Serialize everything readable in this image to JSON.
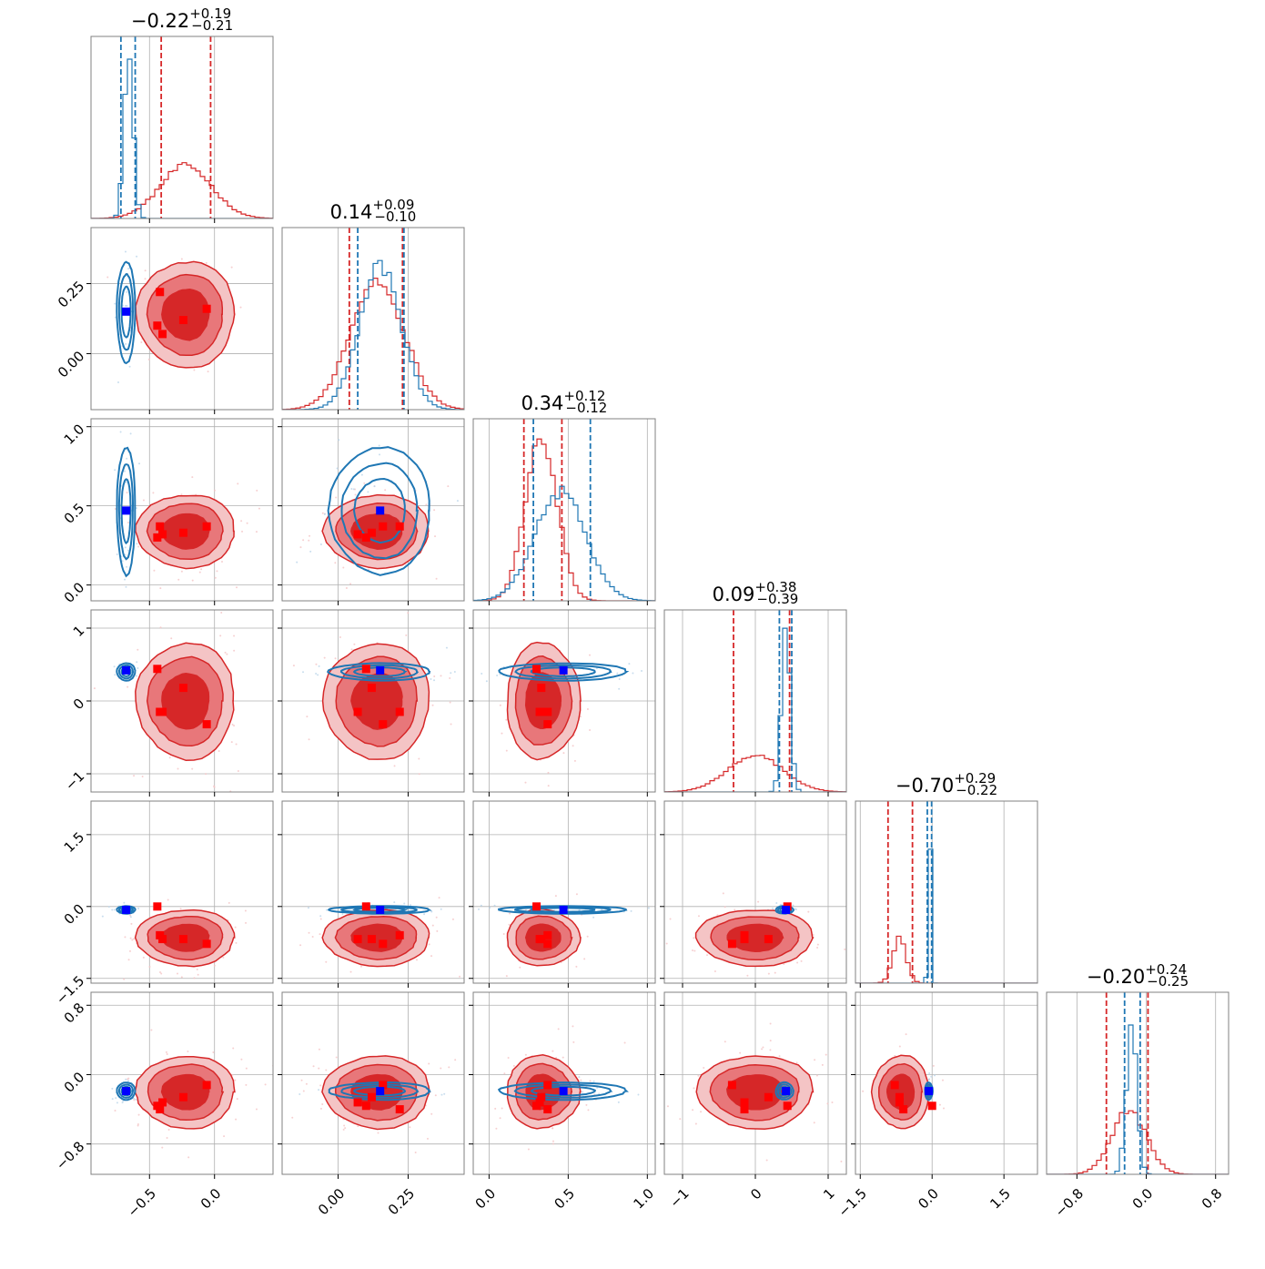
{
  "chart_data": {
    "type": "corner",
    "grid": true,
    "colors": {
      "red": "#d62728",
      "red_mid": "#e8777a",
      "red_light": "#f4c4c5",
      "blue": "#1f77b4",
      "blue_marker": "#0000ff",
      "red_marker": "#ff0000",
      "frame": "#808080",
      "grid": "#b0b0b0"
    },
    "diagonal": [
      {
        "title_main": "−0.22",
        "title_sup": "+0.19",
        "title_sub": "−0.21",
        "range": [
          -0.95,
          0.45
        ],
        "red_hist": {
          "center": -0.22,
          "sigma": 0.2,
          "peak": 0.29
        },
        "blue_hist": {
          "center": -0.66,
          "sigma": 0.035,
          "peak": 0.9
        },
        "red_quantiles": [
          -0.41,
          -0.03
        ],
        "blue_quantiles": [
          -0.72,
          -0.61
        ]
      },
      {
        "title_main": "0.14",
        "title_sup": "+0.09",
        "title_sub": "−0.10",
        "range": [
          -0.2,
          0.45
        ],
        "red_hist": {
          "center": 0.14,
          "sigma": 0.095,
          "peak": 0.72
        },
        "blue_hist": {
          "center": 0.15,
          "sigma": 0.075,
          "peak": 0.78
        },
        "red_quantiles": [
          0.04,
          0.23
        ],
        "blue_quantiles": [
          0.07,
          0.235
        ]
      },
      {
        "title_main": "0.34",
        "title_sup": "+0.12",
        "title_sub": "−0.12",
        "range": [
          -0.1,
          1.05
        ],
        "red_hist": {
          "center": 0.33,
          "sigma": 0.1,
          "peak": 0.9
        },
        "blue_hist": {
          "center": 0.45,
          "sigma": 0.16,
          "peak": 0.6
        },
        "red_quantiles": [
          0.22,
          0.46
        ],
        "blue_quantiles": [
          0.28,
          0.64
        ]
      },
      {
        "title_main": "0.09",
        "title_sup": "+0.38",
        "title_sub": "−0.39",
        "range": [
          -1.25,
          1.25
        ],
        "red_hist": {
          "center": 0.0,
          "sigma": 0.38,
          "peak": 0.2
        },
        "blue_hist": {
          "center": 0.42,
          "sigma": 0.06,
          "peak": 0.9
        },
        "red_quantiles": [
          -0.3,
          0.47
        ],
        "blue_quantiles": [
          0.33,
          0.5
        ]
      },
      {
        "title_main": "−0.70",
        "title_sup": "+0.29",
        "title_sub": "−0.22",
        "range": [
          -1.6,
          2.2
        ],
        "red_hist": {
          "center": -0.68,
          "sigma": 0.14,
          "peak": 0.25
        },
        "blue_hist": {
          "center": -0.05,
          "sigma": 0.03,
          "peak": 0.92
        },
        "red_quantiles": [
          -0.92,
          -0.41
        ],
        "blue_quantiles": [
          -0.1,
          -0.01
        ]
      },
      {
        "title_main": "−0.20",
        "title_sup": "+0.24",
        "title_sub": "−0.25",
        "range": [
          -1.15,
          0.95
        ],
        "red_hist": {
          "center": -0.2,
          "sigma": 0.2,
          "peak": 0.35
        },
        "blue_hist": {
          "center": -0.17,
          "sigma": 0.06,
          "peak": 0.82
        },
        "red_quantiles": [
          -0.46,
          0.02
        ],
        "blue_quantiles": [
          -0.25,
          -0.07
        ]
      }
    ],
    "x_ticks": [
      [
        {
          "v": -0.5,
          "label": "−0.5"
        },
        {
          "v": 0.0,
          "label": "0.0"
        }
      ],
      [
        {
          "v": 0.0,
          "label": "0.00"
        },
        {
          "v": 0.25,
          "label": "0.25"
        }
      ],
      [
        {
          "v": 0.0,
          "label": "0.0"
        },
        {
          "v": 0.5,
          "label": "0.5"
        },
        {
          "v": 1.0,
          "label": "1.0"
        }
      ],
      [
        {
          "v": -1,
          "label": "−1"
        },
        {
          "v": 0,
          "label": "0"
        },
        {
          "v": 1,
          "label": "1"
        }
      ],
      [
        {
          "v": -1.5,
          "label": "−1.5"
        },
        {
          "v": 0.0,
          "label": "0.0"
        },
        {
          "v": 1.5,
          "label": "1.5"
        }
      ],
      [
        {
          "v": -0.8,
          "label": "−0.8"
        },
        {
          "v": 0.0,
          "label": "0.0"
        },
        {
          "v": 0.8,
          "label": "0.8"
        }
      ]
    ],
    "y_ticks": [
      [],
      [
        {
          "v": 0.0,
          "label": "0.00"
        },
        {
          "v": 0.25,
          "label": "0.25"
        }
      ],
      [
        {
          "v": 0.0,
          "label": "0.0"
        },
        {
          "v": 0.5,
          "label": "0.5"
        },
        {
          "v": 1.0,
          "label": "1.0"
        }
      ],
      [
        {
          "v": -1,
          "label": "−1"
        },
        {
          "v": 0,
          "label": "0"
        },
        {
          "v": 1,
          "label": "1"
        }
      ],
      [
        {
          "v": -1.5,
          "label": "−1.5"
        },
        {
          "v": 0.0,
          "label": "0.0"
        },
        {
          "v": 1.5,
          "label": "1.5"
        }
      ],
      [
        {
          "v": -0.8,
          "label": "−0.8"
        },
        {
          "v": 0.0,
          "label": "0.0"
        },
        {
          "v": 0.8,
          "label": "0.8"
        }
      ]
    ],
    "red_posterior": {
      "means": [
        -0.22,
        0.14,
        0.34,
        0.0,
        -0.65,
        -0.2
      ],
      "sigmas": [
        0.18,
        0.09,
        0.11,
        0.38,
        0.28,
        0.2
      ]
    },
    "blue_posterior": {
      "means": [
        -0.68,
        0.15,
        0.47,
        0.4,
        -0.07,
        -0.19
      ],
      "sigmas": [
        0.035,
        0.09,
        0.2,
        0.06,
        0.04,
        0.05
      ]
    },
    "truth_blue": [
      -0.68,
      0.15,
      0.47,
      0.42,
      -0.07,
      -0.19
    ],
    "red_markers": [
      [
        -0.42,
        0.22,
        0.37,
        -0.15,
        -0.6,
        -0.4
      ],
      [
        -0.24,
        0.12,
        0.33,
        0.18,
        -0.68,
        -0.26
      ],
      [
        -0.06,
        0.16,
        0.37,
        -0.32,
        -0.78,
        -0.12
      ],
      [
        -0.44,
        0.1,
        0.3,
        0.44,
        0.0,
        -0.36
      ],
      [
        -0.4,
        0.07,
        0.32,
        -0.15,
        -0.68,
        -0.32
      ]
    ]
  }
}
